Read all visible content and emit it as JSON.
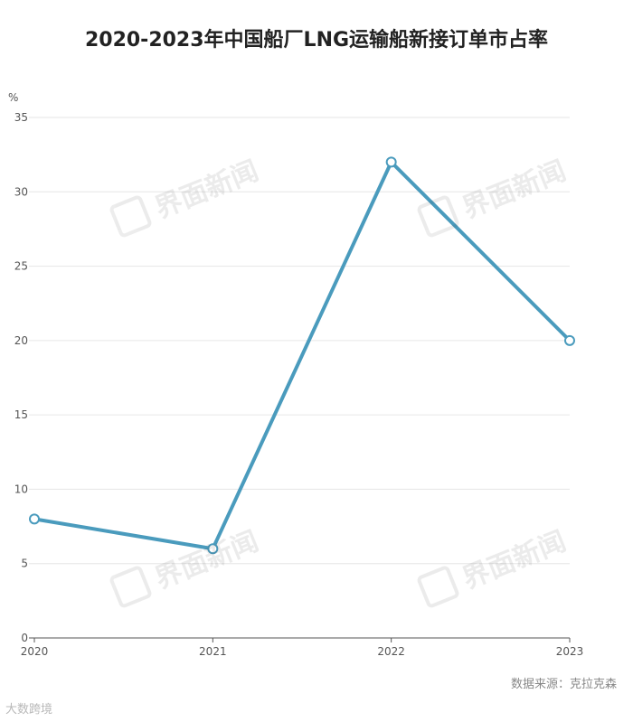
{
  "chart_data": {
    "type": "line",
    "title": "2020-2023年中国船厂LNG运输船新接订单市占率",
    "ylabel": "%",
    "xlabel": "",
    "x": [
      "2020",
      "2021",
      "2022",
      "2023"
    ],
    "series": [
      {
        "values": [
          8,
          6,
          32,
          20
        ]
      }
    ],
    "ylim": [
      0,
      35
    ],
    "yticks": [
      0,
      5,
      10,
      15,
      20,
      25,
      30,
      35
    ],
    "grid": true,
    "color": "#4a9bbd"
  },
  "source_text": "数据来源：克拉克森",
  "watermark_text": "界面新闻",
  "corner_logo_text": "大数跨境"
}
